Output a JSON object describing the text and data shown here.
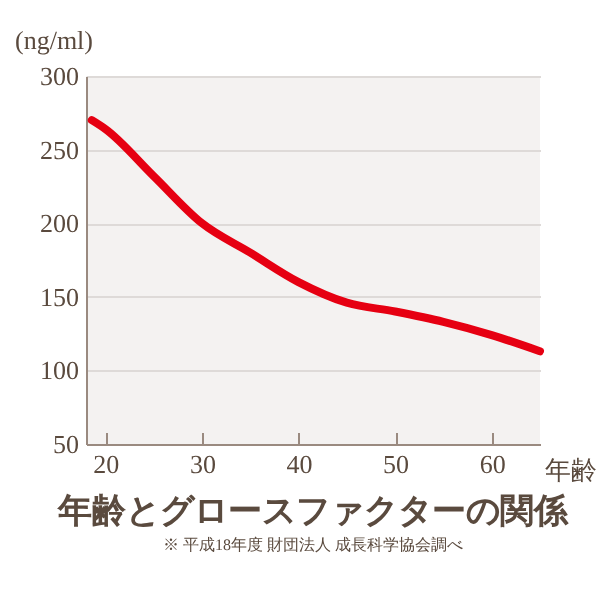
{
  "chart_data": {
    "type": "line",
    "title": "年齢とグロースファクターの関係",
    "annotations": [
      "※ 平成18年度 財団法人 成長科学協会調べ"
    ],
    "xlabel": "年齢",
    "ylabel": "(ng/ml)",
    "x": [
      18.6,
      20,
      25,
      30,
      35,
      40,
      45,
      50,
      55,
      60,
      65
    ],
    "series": [
      {
        "color": "#e60012",
        "values": [
          270,
          264,
          232,
          200,
          180,
          160,
          146,
          140,
          133,
          124,
          113
        ]
      }
    ],
    "xlim": [
      18,
      65
    ],
    "xticks": [
      20,
      30,
      40,
      50,
      60
    ],
    "ylim": [
      50,
      300
    ],
    "yticks": [
      50,
      100,
      150,
      200,
      250,
      300
    ],
    "grid": "y",
    "legend": false,
    "marker": "none",
    "line_style": "solid"
  }
}
